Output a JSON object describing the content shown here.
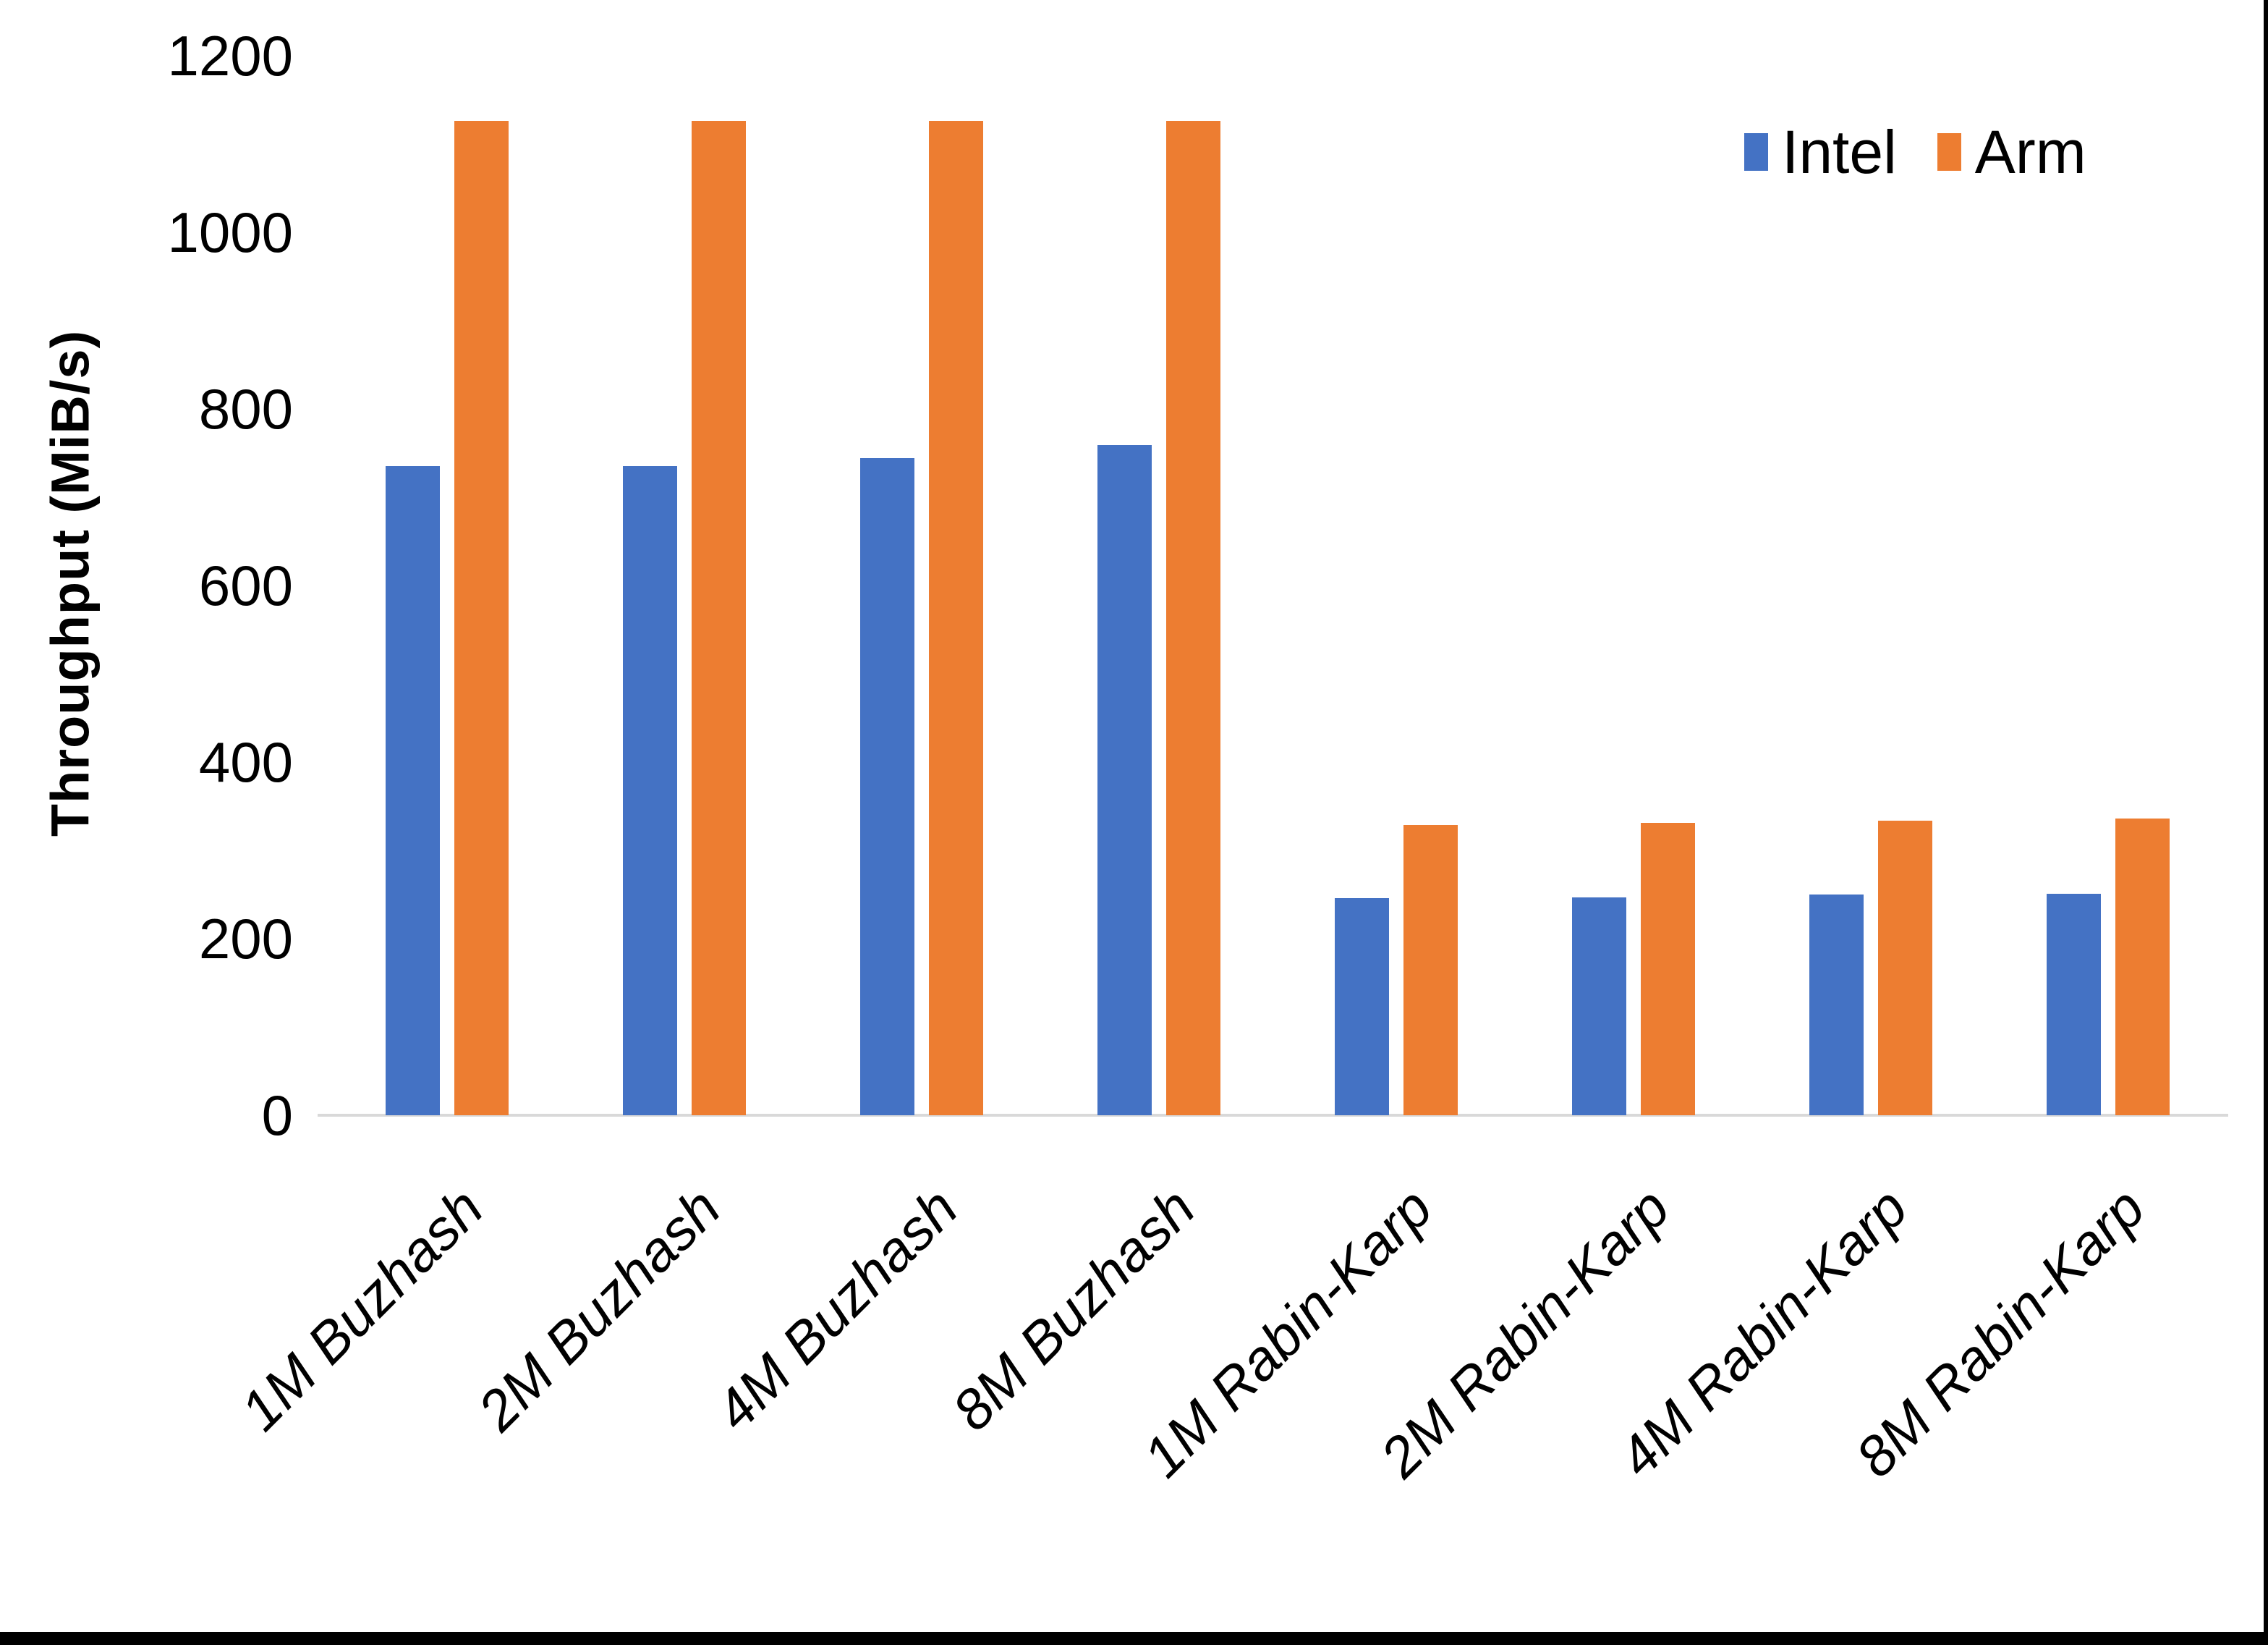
{
  "figure": {
    "y_axis_title": "Throughput (MiB/s)"
  },
  "colors": {
    "intel": "#4472C4",
    "arm": "#ED7D31",
    "axis_line": "#D9D9D9",
    "text": "#000000",
    "screen_edge": "#000000"
  },
  "chart_data": {
    "type": "bar",
    "title": "",
    "xlabel": "",
    "ylabel": "Throughput (MiB/s)",
    "categories": [
      "1M Buzhash",
      "2M Buzhash",
      "4M Buzhash",
      "8M Buzhash",
      "1M Rabin-Karp",
      "2M Rabin-Karp",
      "4M Rabin-Karp",
      "8M Rabin-Karp"
    ],
    "series": [
      {
        "name": "Intel",
        "color": "#4472C4",
        "values": [
          735,
          735,
          744,
          759,
          246,
          247,
          250,
          251
        ]
      },
      {
        "name": "Arm",
        "color": "#ED7D31",
        "values": [
          1126,
          1126,
          1126,
          1126,
          329,
          331,
          334,
          336
        ]
      }
    ],
    "ylim": [
      0,
      1200
    ],
    "yticks": [
      0,
      200,
      400,
      600,
      800,
      1000,
      1200
    ],
    "grid": false,
    "legend_position": "top-right",
    "x_tick_rotation_deg": 45,
    "x_tick_style": "italic"
  }
}
